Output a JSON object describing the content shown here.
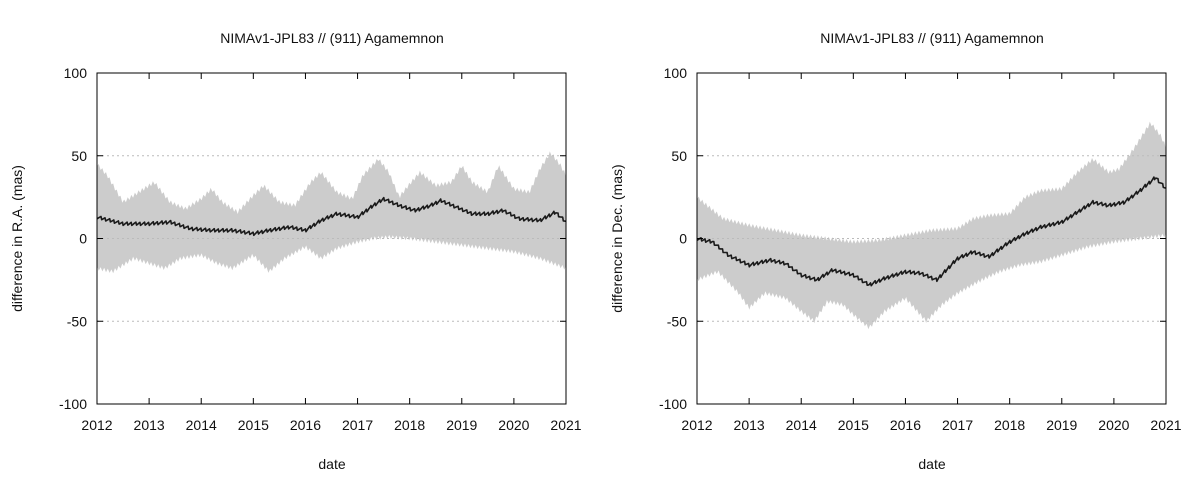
{
  "colors": {
    "band": "#cccccc",
    "line": "#1a1a1a",
    "grid": "#bbbbbb"
  },
  "chart_data": [
    {
      "type": "line",
      "title": "NIMAv1-JPL83 // (911) Agamemnon",
      "xlabel": "date",
      "ylabel": "difference in R.A. (mas)",
      "xlim": [
        2012,
        2021
      ],
      "ylim": [
        -100,
        100
      ],
      "xticks": [
        2012,
        2013,
        2014,
        2015,
        2016,
        2017,
        2018,
        2019,
        2020,
        2021
      ],
      "yticks": [
        -100,
        -50,
        0,
        50,
        100
      ],
      "grid": [
        -50,
        0,
        50
      ],
      "series": [
        {
          "name": "difference",
          "x": [
            2012.0,
            2012.5,
            2013.0,
            2013.4,
            2013.8,
            2014.2,
            2014.6,
            2015.0,
            2015.3,
            2015.7,
            2016.0,
            2016.3,
            2016.6,
            2017.0,
            2017.3,
            2017.5,
            2017.8,
            2018.1,
            2018.4,
            2018.6,
            2018.9,
            2019.2,
            2019.5,
            2019.8,
            2020.1,
            2020.5,
            2020.8,
            2021.0
          ],
          "y": [
            13,
            9,
            9,
            10,
            6,
            5,
            5,
            3,
            5,
            7,
            5,
            11,
            15,
            13,
            20,
            24,
            20,
            17,
            20,
            23,
            19,
            15,
            15,
            17,
            12,
            11,
            16,
            10
          ]
        },
        {
          "name": "uncertainty-upper",
          "x": [
            2012.0,
            2012.2,
            2012.5,
            2012.8,
            2013.1,
            2013.4,
            2013.7,
            2014.0,
            2014.2,
            2014.4,
            2014.7,
            2015.0,
            2015.2,
            2015.5,
            2015.8,
            2016.1,
            2016.3,
            2016.6,
            2016.9,
            2017.1,
            2017.4,
            2017.6,
            2017.8,
            2018.0,
            2018.2,
            2018.5,
            2018.8,
            2019.0,
            2019.2,
            2019.5,
            2019.7,
            2020.0,
            2020.3,
            2020.5,
            2020.7,
            2020.9,
            2021.0
          ],
          "y": [
            45,
            38,
            22,
            28,
            34,
            22,
            18,
            24,
            30,
            22,
            16,
            26,
            32,
            22,
            20,
            34,
            40,
            28,
            24,
            38,
            48,
            40,
            25,
            33,
            40,
            32,
            34,
            44,
            34,
            28,
            44,
            30,
            28,
            42,
            52,
            44,
            38
          ]
        },
        {
          "name": "uncertainty-lower",
          "x": [
            2012.0,
            2012.3,
            2012.7,
            2013.0,
            2013.3,
            2013.6,
            2014.0,
            2014.3,
            2014.6,
            2015.0,
            2015.3,
            2015.6,
            2016.0,
            2016.3,
            2016.6,
            2017.0,
            2017.3,
            2017.6,
            2018.0,
            2018.5,
            2019.0,
            2019.5,
            2020.0,
            2020.5,
            2021.0
          ],
          "y": [
            -18,
            -20,
            -12,
            -15,
            -18,
            -12,
            -10,
            -15,
            -18,
            -10,
            -20,
            -12,
            -5,
            -12,
            -6,
            -2,
            0,
            1,
            0,
            -2,
            -4,
            -6,
            -8,
            -12,
            -18
          ]
        }
      ]
    },
    {
      "type": "line",
      "title": "NIMAv1-JPL83 // (911) Agamemnon",
      "xlabel": "date",
      "ylabel": "difference in Dec. (mas)",
      "xlim": [
        2012,
        2021
      ],
      "ylim": [
        -100,
        100
      ],
      "xticks": [
        2012,
        2013,
        2014,
        2015,
        2016,
        2017,
        2018,
        2019,
        2020,
        2021
      ],
      "yticks": [
        -100,
        -50,
        0,
        50,
        100
      ],
      "grid": [
        -50,
        0,
        50
      ],
      "series": [
        {
          "name": "difference",
          "x": [
            2012.0,
            2012.3,
            2012.6,
            2013.0,
            2013.4,
            2013.7,
            2014.0,
            2014.3,
            2014.6,
            2015.0,
            2015.3,
            2015.6,
            2016.0,
            2016.3,
            2016.6,
            2017.0,
            2017.3,
            2017.6,
            2018.0,
            2018.3,
            2018.6,
            2019.0,
            2019.3,
            2019.6,
            2019.9,
            2020.2,
            2020.5,
            2020.8,
            2021.0
          ],
          "y": [
            0,
            -2,
            -10,
            -16,
            -13,
            -15,
            -22,
            -25,
            -19,
            -22,
            -28,
            -24,
            -20,
            -21,
            -25,
            -12,
            -8,
            -11,
            -2,
            3,
            7,
            10,
            16,
            22,
            20,
            22,
            29,
            37,
            30
          ]
        },
        {
          "name": "uncertainty-upper",
          "x": [
            2012.0,
            2012.5,
            2013.0,
            2013.5,
            2014.0,
            2014.5,
            2015.0,
            2015.5,
            2016.0,
            2016.5,
            2017.0,
            2017.3,
            2017.6,
            2018.0,
            2018.3,
            2018.6,
            2019.0,
            2019.3,
            2019.6,
            2019.9,
            2020.1,
            2020.4,
            2020.7,
            2020.9,
            2021.0
          ],
          "y": [
            25,
            12,
            8,
            5,
            2,
            0,
            -2,
            -1,
            2,
            5,
            6,
            12,
            14,
            15,
            25,
            29,
            30,
            40,
            48,
            40,
            42,
            55,
            70,
            62,
            55
          ]
        },
        {
          "name": "uncertainty-lower",
          "x": [
            2012.0,
            2012.4,
            2012.8,
            2013.0,
            2013.3,
            2013.7,
            2014.0,
            2014.25,
            2014.5,
            2014.8,
            2015.0,
            2015.3,
            2015.6,
            2016.0,
            2016.4,
            2016.7,
            2017.0,
            2017.4,
            2017.8,
            2018.2,
            2018.6,
            2019.0,
            2019.5,
            2020.0,
            2020.5,
            2021.0
          ],
          "y": [
            -25,
            -20,
            -33,
            -42,
            -33,
            -36,
            -44,
            -50,
            -38,
            -40,
            -46,
            -54,
            -44,
            -36,
            -50,
            -40,
            -33,
            -26,
            -20,
            -16,
            -14,
            -10,
            -5,
            -2,
            0,
            2
          ]
        }
      ]
    }
  ]
}
